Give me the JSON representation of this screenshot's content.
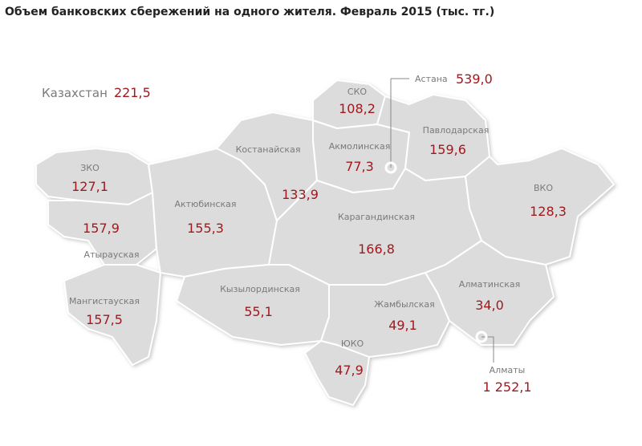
{
  "title": "Объем банковских сбережений на одного  жителя. Февраль 2015 (тыс. тг.)",
  "country": {
    "name": "Казахстан",
    "value": "221,5"
  },
  "regions": [
    {
      "name": "СКО",
      "value": "108,2"
    },
    {
      "name": "Павлодарская",
      "value": "159,6"
    },
    {
      "name": "Акмолинская",
      "value": "77,3"
    },
    {
      "name": "Костанайская",
      "value": "133,9"
    },
    {
      "name": "ЗКО",
      "value": "127,1"
    },
    {
      "name": "Актюбинская",
      "value": "155,3"
    },
    {
      "name": "Атырауская",
      "value": "157,9"
    },
    {
      "name": "Карагандинская",
      "value": "166,8"
    },
    {
      "name": "ВКО",
      "value": "128,3"
    },
    {
      "name": "Мангистауская",
      "value": "157,5"
    },
    {
      "name": "Кызылординская",
      "value": "55,1"
    },
    {
      "name": "Алматинская",
      "value": "34,0"
    },
    {
      "name": "Жамбылская",
      "value": "49,1"
    },
    {
      "name": "ЮКО",
      "value": "47,9"
    }
  ],
  "cities": [
    {
      "name": "Астана",
      "value": "539,0"
    },
    {
      "name": "Алматы",
      "value": "1 252,1"
    }
  ]
}
